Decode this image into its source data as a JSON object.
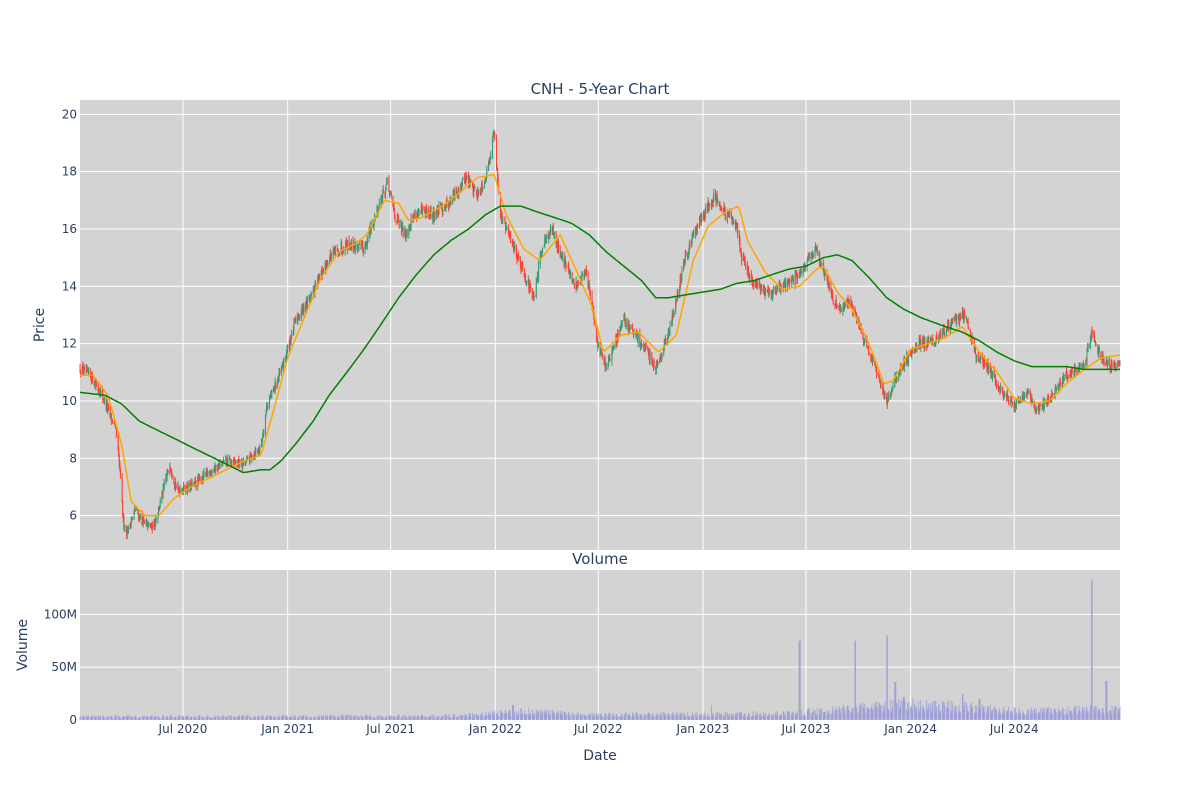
{
  "chart_data": [
    {
      "type": "candlestick",
      "title": "CNH - 5-Year Chart",
      "ylabel": "Price",
      "xlabel": "",
      "xlim": [
        "2020-01-02",
        "2025-01-03"
      ],
      "ylim": [
        4.8,
        20.5
      ],
      "yticks": [
        6,
        8,
        10,
        12,
        14,
        16,
        18,
        20
      ],
      "grid": true,
      "colors": {
        "up": "#3d9970",
        "down": "#ff4136",
        "ma_short": "#ffa500",
        "ma_long": "#008000",
        "background": "#d3d3d3"
      },
      "price_anchors": [
        [
          "2020-01-02",
          11.1
        ],
        [
          "2020-01-20",
          10.9
        ],
        [
          "2020-02-10",
          10.2
        ],
        [
          "2020-02-24",
          9.5
        ],
        [
          "2020-03-05",
          9.0
        ],
        [
          "2020-03-12",
          7.6
        ],
        [
          "2020-03-18",
          5.8
        ],
        [
          "2020-03-24",
          5.4
        ],
        [
          "2020-04-08",
          6.2
        ],
        [
          "2020-04-25",
          5.7
        ],
        [
          "2020-05-10",
          5.6
        ],
        [
          "2020-05-20",
          6.3
        ],
        [
          "2020-06-08",
          7.8
        ],
        [
          "2020-06-20",
          6.9
        ],
        [
          "2020-07-15",
          7.0
        ],
        [
          "2020-08-15",
          7.5
        ],
        [
          "2020-09-15",
          7.9
        ],
        [
          "2020-10-15",
          7.8
        ],
        [
          "2020-11-15",
          8.4
        ],
        [
          "2020-11-25",
          9.8
        ],
        [
          "2020-12-20",
          11.0
        ],
        [
          "2021-01-15",
          12.8
        ],
        [
          "2021-02-15",
          13.8
        ],
        [
          "2021-03-15",
          15.0
        ],
        [
          "2021-04-15",
          15.5
        ],
        [
          "2021-05-15",
          15.3
        ],
        [
          "2021-06-10",
          16.8
        ],
        [
          "2021-06-25",
          17.6
        ],
        [
          "2021-07-10",
          16.4
        ],
        [
          "2021-07-25",
          15.8
        ],
        [
          "2021-08-15",
          16.6
        ],
        [
          "2021-09-15",
          16.5
        ],
        [
          "2021-10-15",
          17.0
        ],
        [
          "2021-11-10",
          17.8
        ],
        [
          "2021-12-01",
          17.2
        ],
        [
          "2021-12-15",
          17.8
        ],
        [
          "2021-12-30",
          19.4
        ],
        [
          "2022-01-10",
          16.5
        ],
        [
          "2022-01-31",
          15.5
        ],
        [
          "2022-02-20",
          14.5
        ],
        [
          "2022-03-10",
          13.5
        ],
        [
          "2022-03-25",
          15.5
        ],
        [
          "2022-04-10",
          16.0
        ],
        [
          "2022-04-25",
          15.2
        ],
        [
          "2022-05-20",
          14.0
        ],
        [
          "2022-06-10",
          14.5
        ],
        [
          "2022-06-30",
          12.0
        ],
        [
          "2022-07-15",
          11.2
        ],
        [
          "2022-08-15",
          12.8
        ],
        [
          "2022-09-15",
          12.0
        ],
        [
          "2022-10-10",
          11.2
        ],
        [
          "2022-11-01",
          12.3
        ],
        [
          "2022-12-01",
          15.0
        ],
        [
          "2022-12-20",
          16.0
        ],
        [
          "2023-01-20",
          17.2
        ],
        [
          "2023-02-10",
          16.5
        ],
        [
          "2023-03-01",
          16.2
        ],
        [
          "2023-03-10",
          15.0
        ],
        [
          "2023-04-01",
          14.0
        ],
        [
          "2023-05-01",
          13.8
        ],
        [
          "2023-06-15",
          14.3
        ],
        [
          "2023-07-20",
          15.3
        ],
        [
          "2023-08-10",
          14.0
        ],
        [
          "2023-08-25",
          13.2
        ],
        [
          "2023-09-15",
          13.5
        ],
        [
          "2023-10-15",
          12.0
        ],
        [
          "2023-11-05",
          10.8
        ],
        [
          "2023-11-20",
          10.0
        ],
        [
          "2023-12-15",
          11.2
        ],
        [
          "2024-01-15",
          12.0
        ],
        [
          "2024-02-15",
          12.1
        ],
        [
          "2024-03-15",
          12.8
        ],
        [
          "2024-04-05",
          13.0
        ],
        [
          "2024-04-25",
          11.6
        ],
        [
          "2024-05-15",
          11.2
        ],
        [
          "2024-06-10",
          10.3
        ],
        [
          "2024-07-01",
          9.8
        ],
        [
          "2024-07-25",
          10.4
        ],
        [
          "2024-08-10",
          9.6
        ],
        [
          "2024-09-10",
          10.3
        ],
        [
          "2024-10-01",
          10.9
        ],
        [
          "2024-11-01",
          11.2
        ],
        [
          "2024-11-15",
          12.4
        ],
        [
          "2024-12-01",
          11.5
        ],
        [
          "2024-12-20",
          11.2
        ],
        [
          "2025-01-03",
          11.3
        ]
      ],
      "ma_short_anchors": [
        [
          "2020-01-02",
          10.9
        ],
        [
          "2020-01-25",
          10.9
        ],
        [
          "2020-02-20",
          10.2
        ],
        [
          "2020-03-15",
          8.5
        ],
        [
          "2020-04-01",
          6.5
        ],
        [
          "2020-04-25",
          6.0
        ],
        [
          "2020-05-20",
          6.0
        ],
        [
          "2020-06-15",
          6.6
        ],
        [
          "2020-07-15",
          7.0
        ],
        [
          "2020-08-15",
          7.3
        ],
        [
          "2020-09-15",
          7.6
        ],
        [
          "2020-10-15",
          7.9
        ],
        [
          "2020-11-15",
          8.1
        ],
        [
          "2020-12-05",
          9.5
        ],
        [
          "2021-01-01",
          11.5
        ],
        [
          "2021-02-01",
          13.0
        ],
        [
          "2021-03-01",
          14.3
        ],
        [
          "2021-04-01",
          15.2
        ],
        [
          "2021-05-01",
          15.5
        ],
        [
          "2021-05-20",
          15.8
        ],
        [
          "2021-06-20",
          17.0
        ],
        [
          "2021-07-15",
          16.9
        ],
        [
          "2021-08-01",
          16.3
        ],
        [
          "2021-08-25",
          16.4
        ],
        [
          "2021-09-30",
          16.8
        ],
        [
          "2021-11-01",
          17.3
        ],
        [
          "2021-12-01",
          17.8
        ],
        [
          "2021-12-30",
          17.9
        ],
        [
          "2022-01-20",
          16.5
        ],
        [
          "2022-02-20",
          15.3
        ],
        [
          "2022-03-20",
          14.9
        ],
        [
          "2022-04-25",
          15.8
        ],
        [
          "2022-05-20",
          14.7
        ],
        [
          "2022-06-20",
          13.3
        ],
        [
          "2022-07-10",
          11.7
        ],
        [
          "2022-08-10",
          12.3
        ],
        [
          "2022-09-10",
          12.4
        ],
        [
          "2022-10-15",
          11.7
        ],
        [
          "2022-11-15",
          12.3
        ],
        [
          "2022-12-15",
          14.9
        ],
        [
          "2023-01-10",
          16.1
        ],
        [
          "2023-02-10",
          16.6
        ],
        [
          "2023-03-05",
          16.8
        ],
        [
          "2023-03-20",
          15.6
        ],
        [
          "2023-04-20",
          14.5
        ],
        [
          "2023-05-20",
          13.9
        ],
        [
          "2023-06-20",
          14.0
        ],
        [
          "2023-07-20",
          14.6
        ],
        [
          "2023-08-01",
          14.7
        ],
        [
          "2023-08-25",
          13.8
        ],
        [
          "2023-09-20",
          13.2
        ],
        [
          "2023-10-20",
          12.0
        ],
        [
          "2023-11-15",
          10.6
        ],
        [
          "2023-12-01",
          10.7
        ],
        [
          "2024-01-01",
          11.8
        ],
        [
          "2024-02-01",
          12.0
        ],
        [
          "2024-03-01",
          12.2
        ],
        [
          "2024-04-01",
          12.6
        ],
        [
          "2024-05-01",
          11.7
        ],
        [
          "2024-06-01",
          11.0
        ],
        [
          "2024-07-01",
          10.1
        ],
        [
          "2024-08-01",
          9.9
        ],
        [
          "2024-09-01",
          10.0
        ],
        [
          "2024-10-01",
          10.6
        ],
        [
          "2024-11-01",
          11.1
        ],
        [
          "2024-12-01",
          11.5
        ],
        [
          "2025-01-03",
          11.6
        ]
      ],
      "ma_long_anchors": [
        [
          "2020-01-02",
          10.3
        ],
        [
          "2020-02-15",
          10.2
        ],
        [
          "2020-03-15",
          9.9
        ],
        [
          "2020-04-15",
          9.3
        ],
        [
          "2020-05-15",
          9.0
        ],
        [
          "2020-06-15",
          8.7
        ],
        [
          "2020-07-15",
          8.4
        ],
        [
          "2020-08-15",
          8.1
        ],
        [
          "2020-09-15",
          7.8
        ],
        [
          "2020-10-15",
          7.5
        ],
        [
          "2020-11-15",
          7.6
        ],
        [
          "2020-12-01",
          7.6
        ],
        [
          "2020-12-20",
          7.9
        ],
        [
          "2021-01-15",
          8.5
        ],
        [
          "2021-02-15",
          9.3
        ],
        [
          "2021-03-15",
          10.2
        ],
        [
          "2021-04-15",
          11.0
        ],
        [
          "2021-05-15",
          11.8
        ],
        [
          "2021-06-15",
          12.7
        ],
        [
          "2021-07-15",
          13.6
        ],
        [
          "2021-08-15",
          14.4
        ],
        [
          "2021-09-15",
          15.1
        ],
        [
          "2021-10-15",
          15.6
        ],
        [
          "2021-11-15",
          16.0
        ],
        [
          "2021-12-15",
          16.5
        ],
        [
          "2022-01-10",
          16.8
        ],
        [
          "2022-02-15",
          16.8
        ],
        [
          "2022-03-15",
          16.6
        ],
        [
          "2022-04-15",
          16.4
        ],
        [
          "2022-05-15",
          16.2
        ],
        [
          "2022-06-15",
          15.8
        ],
        [
          "2022-07-15",
          15.2
        ],
        [
          "2022-08-15",
          14.7
        ],
        [
          "2022-09-15",
          14.2
        ],
        [
          "2022-10-10",
          13.6
        ],
        [
          "2022-11-01",
          13.6
        ],
        [
          "2022-12-01",
          13.7
        ],
        [
          "2023-01-01",
          13.8
        ],
        [
          "2023-02-01",
          13.9
        ],
        [
          "2023-03-01",
          14.1
        ],
        [
          "2023-04-01",
          14.2
        ],
        [
          "2023-05-01",
          14.4
        ],
        [
          "2023-06-01",
          14.6
        ],
        [
          "2023-07-01",
          14.7
        ],
        [
          "2023-08-01",
          15.0
        ],
        [
          "2023-08-25",
          15.1
        ],
        [
          "2023-09-20",
          14.9
        ],
        [
          "2023-10-20",
          14.3
        ],
        [
          "2023-11-20",
          13.6
        ],
        [
          "2023-12-20",
          13.2
        ],
        [
          "2024-01-20",
          12.9
        ],
        [
          "2024-03-01",
          12.6
        ],
        [
          "2024-04-01",
          12.4
        ],
        [
          "2024-05-01",
          12.1
        ],
        [
          "2024-06-01",
          11.7
        ],
        [
          "2024-07-01",
          11.4
        ],
        [
          "2024-08-01",
          11.2
        ],
        [
          "2024-09-01",
          11.2
        ],
        [
          "2024-10-01",
          11.2
        ],
        [
          "2024-11-01",
          11.1
        ],
        [
          "2024-12-01",
          11.1
        ],
        [
          "2025-01-03",
          11.1
        ]
      ]
    },
    {
      "type": "bar",
      "title": "Volume",
      "ylabel": "Volume",
      "xlabel": "Date",
      "xlim": [
        "2020-01-02",
        "2025-01-03"
      ],
      "ylim": [
        0,
        142000000
      ],
      "yticks": [
        0,
        50000000,
        100000000
      ],
      "ytick_labels": [
        "0",
        "50M",
        "100M"
      ],
      "xtick_values": [
        "2020-07-01",
        "2021-01-01",
        "2021-07-01",
        "2022-01-01",
        "2022-07-01",
        "2023-01-01",
        "2023-07-01",
        "2024-01-01",
        "2024-07-01"
      ],
      "xtick_labels": [
        "Jul 2020",
        "Jan 2021",
        "Jul 2021",
        "Jan 2022",
        "Jul 2022",
        "Jan 2023",
        "Jul 2023",
        "Jan 2024",
        "Jul 2024"
      ],
      "grid": true,
      "colors": {
        "bar": "#9b9bd8",
        "background": "#d3d3d3"
      },
      "base_volume_anchors": [
        [
          "2020-01-02",
          3000000
        ],
        [
          "2021-10-01",
          3500000
        ],
        [
          "2022-01-01",
          6000000
        ],
        [
          "2022-03-01",
          8000000
        ],
        [
          "2022-06-01",
          5000000
        ],
        [
          "2023-01-01",
          5000000
        ],
        [
          "2023-06-01",
          6000000
        ],
        [
          "2023-11-01",
          12000000
        ],
        [
          "2024-01-01",
          14000000
        ],
        [
          "2024-04-01",
          12000000
        ],
        [
          "2024-07-01",
          8000000
        ],
        [
          "2024-10-01",
          9000000
        ],
        [
          "2025-01-03",
          10000000
        ]
      ],
      "volume_spikes": [
        [
          "2022-02-01",
          14000000
        ],
        [
          "2023-01-15",
          14000000
        ],
        [
          "2023-06-20",
          75000000
        ],
        [
          "2023-09-25",
          75000000
        ],
        [
          "2023-11-20",
          80000000
        ],
        [
          "2023-12-05",
          36000000
        ],
        [
          "2023-12-20",
          22000000
        ],
        [
          "2024-04-01",
          25000000
        ],
        [
          "2024-05-01",
          20000000
        ],
        [
          "2024-11-15",
          133000000
        ],
        [
          "2024-12-10",
          37000000
        ]
      ]
    }
  ]
}
